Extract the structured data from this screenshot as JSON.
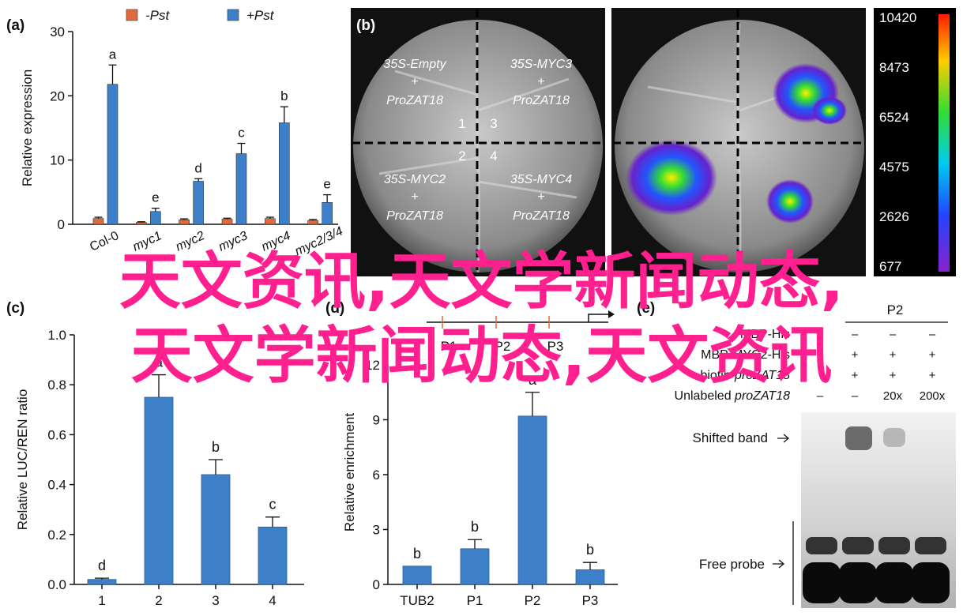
{
  "panels": {
    "a": {
      "label": "(a)",
      "legend": [
        {
          "label": "-Pst",
          "color": "#e06a3b"
        },
        {
          "label": "+Pst",
          "color": "#3e7fc9"
        }
      ],
      "chart_data": {
        "type": "bar",
        "ylabel": "Relative expression",
        "ylim": [
          0,
          30
        ],
        "yticks": [
          "0",
          "10",
          "20",
          "30"
        ],
        "categories": [
          "Col-0",
          "myc1",
          "myc2",
          "myc3",
          "myc4",
          "myc2/3/4"
        ],
        "series": [
          {
            "name": "-Pst",
            "values": [
              0.9,
              0.3,
              0.7,
              0.8,
              0.9,
              0.6
            ],
            "errors": [
              0.2,
              0.1,
              0.15,
              0.15,
              0.2,
              0.15
            ]
          },
          {
            "name": "+Pst",
            "values": [
              21.8,
              2.0,
              6.7,
              11.0,
              15.8,
              3.4
            ],
            "errors": [
              3.0,
              0.5,
              0.4,
              1.6,
              2.5,
              1.2
            ],
            "letters": [
              "a",
              "e",
              "d",
              "c",
              "b",
              "e"
            ]
          }
        ]
      }
    },
    "b": {
      "label": "(b)",
      "quadrants": [
        {
          "top": "35S-Empty",
          "plus": "+",
          "bottom": "ProZAT18",
          "num": "1"
        },
        {
          "top": "35S-MYC3",
          "plus": "+",
          "bottom": "ProZAT18",
          "num": "3"
        },
        {
          "top": "35S-MYC2",
          "plus": "+",
          "bottom": "ProZAT18",
          "num": "2"
        },
        {
          "top": "35S-MYC4",
          "plus": "+",
          "bottom": "ProZAT18",
          "num": "4"
        }
      ],
      "colorbar": [
        "10420",
        "8473",
        "6524",
        "4575",
        "2626",
        "677"
      ]
    },
    "c": {
      "label": "(c)",
      "chart_data": {
        "type": "bar",
        "ylabel": "Relative LUC/REN ratio",
        "ylim": [
          0,
          1.0
        ],
        "yticks": [
          "0.0",
          "0.2",
          "0.4",
          "0.6",
          "0.8",
          "1.0"
        ],
        "categories": [
          "1",
          "2",
          "3",
          "4"
        ],
        "series": [
          {
            "values": [
              0.02,
              0.75,
              0.44,
              0.23
            ],
            "errors": [
              0.005,
              0.09,
              0.06,
              0.04
            ],
            "letters": [
              "d",
              "a",
              "b",
              "c"
            ]
          }
        ]
      }
    },
    "d": {
      "label": "(d)",
      "promoter": [
        "P1",
        "P2",
        "P3"
      ],
      "chart_data": {
        "type": "bar",
        "ylabel": "Relative enrichment",
        "ylim": [
          0,
          12
        ],
        "yticks": [
          "0",
          "3",
          "6",
          "9",
          "12"
        ],
        "categories": [
          "TUB2",
          "P1",
          "P2",
          "P3"
        ],
        "series": [
          {
            "values": [
              1.0,
              1.95,
              9.2,
              0.8
            ],
            "errors": [
              0,
              0.5,
              1.3,
              0.4
            ],
            "letters": [
              "b",
              "b",
              "a",
              "b"
            ]
          }
        ]
      }
    },
    "e": {
      "label": "(e)",
      "group_label": "P2",
      "rows": [
        {
          "label": "MBP-His",
          "values": [
            "",
            "–",
            "–",
            "–"
          ]
        },
        {
          "label": "MBP-MYC2-His",
          "values": [
            "+",
            "+",
            "+",
            "+"
          ]
        },
        {
          "label": "biotin-proZAT18",
          "values": [
            "",
            "+",
            "+",
            "+"
          ]
        },
        {
          "label": "Unlabeled proZAT18",
          "values": [
            "–",
            "–",
            "20x",
            "200x"
          ]
        }
      ],
      "shifted_label": "Shifted band",
      "free_label": "Free probe"
    }
  },
  "overlay": {
    "line1": "天文资讯,天文学新闻动态,",
    "line2": "天文学新闻动态,天文资讯"
  }
}
